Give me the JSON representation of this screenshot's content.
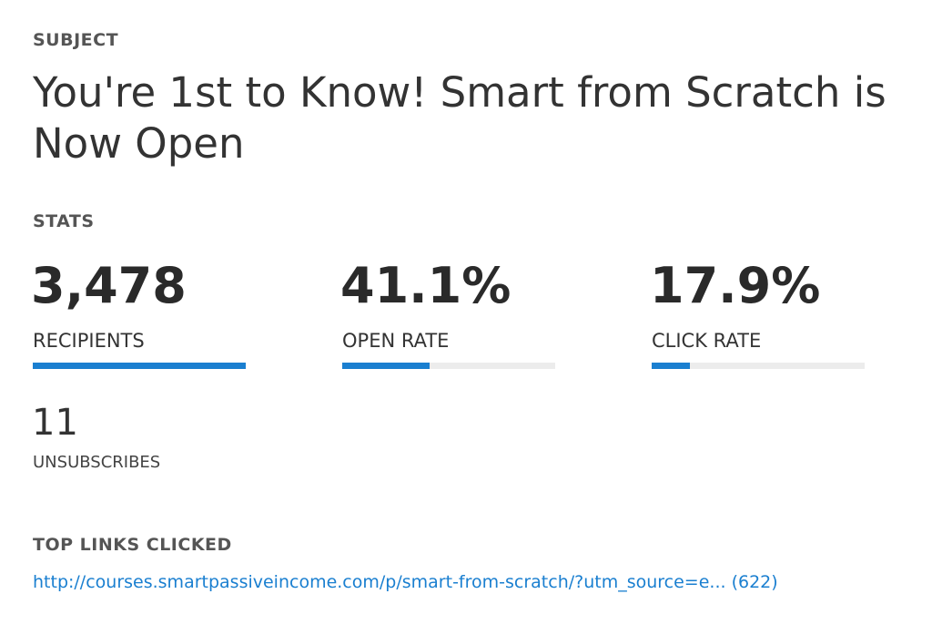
{
  "subject": {
    "heading": "SUBJECT",
    "text": "You're 1st to Know! Smart from Scratch is Now Open"
  },
  "stats": {
    "heading": "STATS",
    "items": [
      {
        "value": 3478,
        "value_label": "3,478",
        "label": "RECIPIENTS"
      },
      {
        "value": 41.1,
        "value_label": "41.1%",
        "label": "OPEN RATE"
      },
      {
        "value": 17.9,
        "value_label": "17.9%",
        "label": "CLICK RATE"
      }
    ],
    "unsubscribes": {
      "value": "11",
      "label": "UNSUBSCRIBES"
    }
  },
  "top_links": {
    "heading": "TOP LINKS CLICKED",
    "links": [
      "http://courses.smartpassiveincome.com/p/smart-from-scratch/?utm_source=e... (622)"
    ]
  }
}
